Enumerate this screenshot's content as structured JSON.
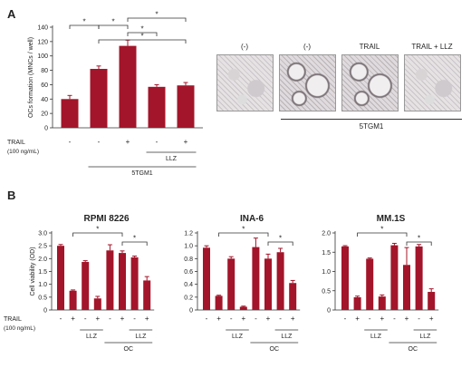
{
  "panel_a": {
    "label": "A",
    "micrograph_labels": [
      "(-)",
      "(-)",
      "TRAIL",
      "TRAIL + LLZ"
    ],
    "micrograph_group_label": "5TGM1"
  },
  "panel_b": {
    "label": "B"
  },
  "colors": {
    "bar": "#a3152a"
  },
  "chart_data": [
    {
      "type": "bar",
      "panel": "A",
      "ylabel": "OCs formation (MNCs / well)",
      "ylim": [
        0,
        140
      ],
      "yticks": [
        0,
        20,
        40,
        60,
        80,
        100,
        120,
        140
      ],
      "values": [
        40,
        82,
        114,
        57,
        59
      ],
      "errors": [
        5,
        4,
        8,
        3,
        4
      ],
      "trail_row_label": "TRAIL",
      "trail_row_sublabel": "(100 ng/mL)",
      "trail_signs": [
        "-",
        "-",
        "+",
        "-",
        "+"
      ],
      "groups": [
        {
          "label": "LLZ",
          "from": 3,
          "to": 4
        },
        {
          "label": "5TGM1",
          "from": 1,
          "to": 4
        }
      ],
      "significance": [
        {
          "from": 0,
          "to": 1,
          "label": "*",
          "level": 2
        },
        {
          "from": 1,
          "to": 2,
          "label": "*",
          "level": 2
        },
        {
          "from": 2,
          "to": 4,
          "label": "*",
          "level": 3
        },
        {
          "from": 2,
          "to": 3,
          "label": "*",
          "level": 1
        },
        {
          "from": 1,
          "to": 4,
          "label": "*",
          "level": 0
        }
      ]
    },
    {
      "type": "bar",
      "panel": "B",
      "title": "RPMI 8226",
      "ylabel": "Cell viability (OD)",
      "ylim": [
        0,
        3.0
      ],
      "yticks": [
        "0",
        "0.5",
        "1.0",
        "1.5",
        "2.0",
        "2.5",
        "3.0"
      ],
      "values": [
        2.5,
        0.75,
        1.87,
        0.45,
        2.32,
        2.22,
        2.05,
        1.15
      ],
      "errors": [
        0.05,
        0.03,
        0.05,
        0.08,
        0.22,
        0.08,
        0.05,
        0.15
      ],
      "trail_row_label": "TRAIL",
      "trail_row_sublabel": "(100 ng/mL)",
      "trail_signs": [
        "-",
        "+",
        "-",
        "+",
        "-",
        "+",
        "-",
        "+"
      ],
      "groups": [
        {
          "label": "LLZ",
          "from": 2,
          "to": 3
        },
        {
          "label": "LLZ",
          "from": 6,
          "to": 7
        },
        {
          "label": "OC",
          "from": 4,
          "to": 7
        }
      ],
      "significance": [
        {
          "from": 1,
          "to": 5,
          "label": "*",
          "level": 1
        },
        {
          "from": 5,
          "to": 7,
          "label": "*",
          "level": 0
        }
      ]
    },
    {
      "type": "bar",
      "panel": "B",
      "title": "INA-6",
      "ylim": [
        0,
        1.2
      ],
      "yticks": [
        "0",
        "0.2",
        "0.4",
        "0.6",
        "0.8",
        "1.0",
        "1.2"
      ],
      "values": [
        0.97,
        0.22,
        0.8,
        0.05,
        0.98,
        0.8,
        0.9,
        0.42
      ],
      "errors": [
        0.03,
        0.01,
        0.03,
        0.01,
        0.14,
        0.07,
        0.06,
        0.04
      ],
      "trail_signs": [
        "-",
        "+",
        "-",
        "+",
        "-",
        "+",
        "-",
        "+"
      ],
      "groups": [
        {
          "label": "LLZ",
          "from": 2,
          "to": 3
        },
        {
          "label": "LLZ",
          "from": 6,
          "to": 7
        },
        {
          "label": "OC",
          "from": 4,
          "to": 7
        }
      ],
      "significance": [
        {
          "from": 1,
          "to": 5,
          "label": "*",
          "level": 1
        },
        {
          "from": 5,
          "to": 7,
          "label": "*",
          "level": 0
        }
      ]
    },
    {
      "type": "bar",
      "panel": "B",
      "title": "MM.1S",
      "ylim": [
        0,
        2.0
      ],
      "yticks": [
        "0",
        "0.5",
        "1.0",
        "1.5",
        "2.0"
      ],
      "values": [
        1.65,
        0.33,
        1.33,
        0.35,
        1.68,
        1.17,
        1.65,
        0.47
      ],
      "errors": [
        0.02,
        0.03,
        0.02,
        0.04,
        0.05,
        0.45,
        0.05,
        0.08
      ],
      "trail_signs": [
        "-",
        "+",
        "-",
        "+",
        "-",
        "+",
        "-",
        "+"
      ],
      "groups": [
        {
          "label": "LLZ",
          "from": 2,
          "to": 3
        },
        {
          "label": "LLZ",
          "from": 6,
          "to": 7
        },
        {
          "label": "OC",
          "from": 4,
          "to": 7
        }
      ],
      "significance": [
        {
          "from": 1,
          "to": 5,
          "label": "*",
          "level": 1
        },
        {
          "from": 5,
          "to": 7,
          "label": "*",
          "level": 0
        }
      ]
    }
  ]
}
